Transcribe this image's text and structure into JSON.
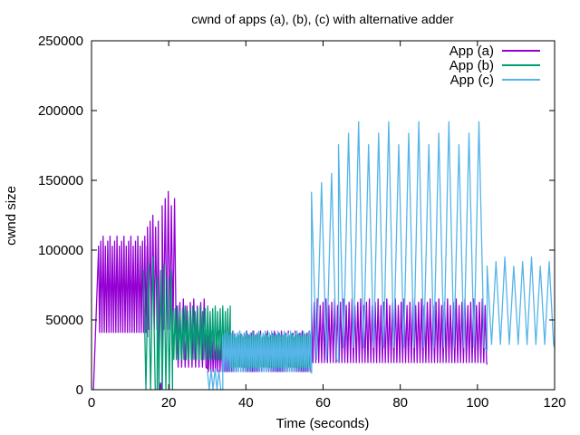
{
  "chart_data": {
    "type": "line",
    "title": "cwnd of apps (a), (b), (c) with alternative adder",
    "xlabel": "Time (seconds)",
    "ylabel": "cwnd size",
    "xlim": [
      0,
      120
    ],
    "ylim": [
      0,
      250000
    ],
    "xticks": [
      "0",
      "20",
      "40",
      "60",
      "80",
      "100",
      "120"
    ],
    "yticks": [
      "0",
      "50000",
      "100000",
      "150000",
      "200000",
      "250000"
    ],
    "grid": false,
    "legend_position": "top-right",
    "series": [
      {
        "name": "App (a)",
        "color": "#9400D3",
        "phases": [
          {
            "start": 0.5,
            "end": 1.8,
            "low": 0,
            "high": 0,
            "period": 1.0,
            "ramp_to": 100000
          },
          {
            "start": 1.8,
            "end": 14.5,
            "low": 38000,
            "high": 110000,
            "period": 0.6
          },
          {
            "start": 14.5,
            "end": 17.5,
            "low": 40000,
            "high": 125000,
            "period": 0.7
          },
          {
            "start": 17.5,
            "end": 18.3,
            "low": 0,
            "high": 5000,
            "period": 0.4
          },
          {
            "start": 18.3,
            "end": 22.0,
            "low": 40000,
            "high": 142000,
            "period": 0.8
          },
          {
            "start": 22.0,
            "end": 30.0,
            "low": 15000,
            "high": 65000,
            "period": 0.9
          },
          {
            "start": 30.0,
            "end": 57.0,
            "low": 12000,
            "high": 42000,
            "period": 0.6
          },
          {
            "start": 57.0,
            "end": 102.5,
            "low": 18000,
            "high": 65000,
            "period": 0.75
          }
        ]
      },
      {
        "name": "App (b)",
        "color": "#009E73",
        "phases": [
          {
            "start": 13.5,
            "end": 17.0,
            "low": 0,
            "high": 95000,
            "period": 1.2
          },
          {
            "start": 17.0,
            "end": 21.0,
            "low": 0,
            "high": 90000,
            "period": 0.9
          },
          {
            "start": 21.0,
            "end": 36.0,
            "low": 20000,
            "high": 60000,
            "period": 0.65
          },
          {
            "start": 36.0,
            "end": 57.0,
            "low": 15000,
            "high": 40000,
            "period": 0.55
          }
        ]
      },
      {
        "name": "App (c)",
        "color": "#56B4E9",
        "phases": [
          {
            "start": 30.0,
            "end": 34.0,
            "low": 0,
            "high": 15000,
            "period": 1.0
          },
          {
            "start": 34.0,
            "end": 57.0,
            "low": 12000,
            "high": 42000,
            "period": 0.55
          },
          {
            "start": 57.0,
            "end": 64.0,
            "low": 20000,
            "high": 155000,
            "period": 2.6
          },
          {
            "start": 64.0,
            "end": 102.5,
            "low": 28000,
            "high": 192000,
            "period": 2.6
          },
          {
            "start": 102.5,
            "end": 120.0,
            "low": 30000,
            "high": 95000,
            "period": 2.3
          }
        ]
      }
    ]
  }
}
